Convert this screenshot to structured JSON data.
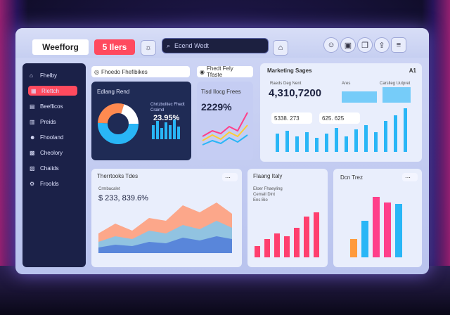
{
  "header": {
    "logo_text": "Weefforg",
    "badge_text": "5 Ilers",
    "search_placeholder": "Ecend Wedt",
    "icons": [
      "sun-icon",
      "bell-icon",
      "user-icon",
      "image-icon",
      "copy-icon",
      "menu-icon"
    ]
  },
  "sidebar": {
    "items": [
      {
        "icon": "home-icon",
        "label": "Fhelby",
        "active": false
      },
      {
        "icon": "dashboard-icon",
        "label": "Rlettch",
        "active": true
      },
      {
        "icon": "folder-icon",
        "label": "Beeflicos",
        "active": false
      },
      {
        "icon": "chart-icon",
        "label": "Preids",
        "active": false
      },
      {
        "icon": "users-icon",
        "label": "Fhooland",
        "active": false
      },
      {
        "icon": "calendar-icon",
        "label": "Cheolory",
        "active": false
      },
      {
        "icon": "doc-icon",
        "label": "Chaiids",
        "active": false
      },
      {
        "icon": "settings-icon",
        "label": "Froolds",
        "active": false
      }
    ]
  },
  "panels": {
    "overview_tab": "Fhoedo Fhefibikes",
    "overview_tab2": "Fhedt Fely Tfaste",
    "donut": {
      "title": "Edlang Rend",
      "legend_a": "Chrtzbolitec Fhedt",
      "legend_b": "Cralmd",
      "value": "23.95%"
    },
    "trend": {
      "title": "Tisd Ilocg Frees",
      "value": "2229%"
    },
    "marketing": {
      "title": "Marketing Sages",
      "corner": "A1",
      "value": "4,310,7200",
      "sub1": "Raeds Deg Nent",
      "sub2": "Ares",
      "sub3": "Carslleg Uutpret",
      "chip1": "5338. 273",
      "chip2": "625. 625"
    },
    "area": {
      "title": "Therrtooks Tdes",
      "value": "$ 233, 839.6%",
      "sub": "Crmbacalet"
    },
    "bars": {
      "title": "Flaang Italy",
      "legend1": "Eloer Fhaeyling",
      "legend2": "Cemall Dint",
      "legend3": "Ens Bio"
    },
    "col": {
      "title": "Dcn Trez"
    }
  },
  "colors": {
    "accent": "#ff4a5e",
    "sidebar": "#1b2148",
    "cyan": "#29b6f6",
    "pink": "#ff3f8a",
    "orange": "#ff8a50"
  }
}
